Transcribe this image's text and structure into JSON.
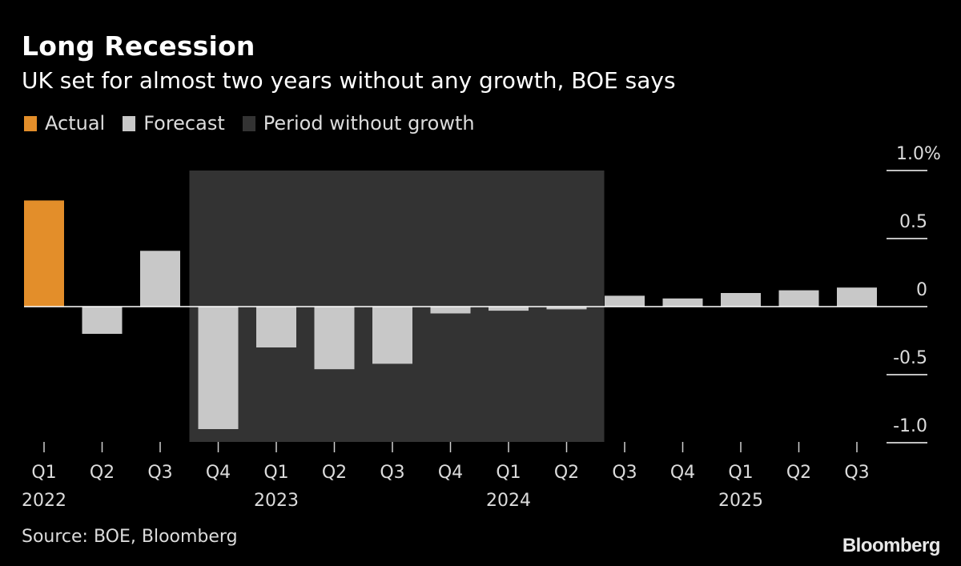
{
  "header": {
    "title": "Long Recession",
    "subtitle": "UK set for almost two years without any growth, BOE says"
  },
  "legend": [
    {
      "label": "Actual",
      "color": "#e38e2a"
    },
    {
      "label": "Forecast",
      "color": "#c8c8c8"
    },
    {
      "label": "Period without growth",
      "color": "#333333"
    }
  ],
  "footer": {
    "source": "Source: BOE, Bloomberg",
    "brand": "Bloomberg"
  },
  "chart_data": {
    "type": "bar",
    "title": "Long Recession",
    "subtitle": "UK set for almost two years without any growth, BOE says",
    "unit": "%",
    "categories": [
      "Q1",
      "Q2",
      "Q3",
      "Q4",
      "Q1",
      "Q2",
      "Q3",
      "Q4",
      "Q1",
      "Q2",
      "Q3",
      "Q4",
      "Q1",
      "Q2",
      "Q3"
    ],
    "years": [
      {
        "label": "2022",
        "at_index": 0
      },
      {
        "label": "2023",
        "at_index": 4
      },
      {
        "label": "2024",
        "at_index": 8
      },
      {
        "label": "2025",
        "at_index": 12
      }
    ],
    "values": [
      0.78,
      -0.2,
      0.41,
      -0.9,
      -0.3,
      -0.46,
      -0.42,
      -0.05,
      -0.03,
      -0.02,
      0.08,
      0.06,
      0.1,
      0.12,
      0.14
    ],
    "kinds": [
      "actual",
      "forecast",
      "forecast",
      "forecast",
      "forecast",
      "forecast",
      "forecast",
      "forecast",
      "forecast",
      "forecast",
      "forecast",
      "forecast",
      "forecast",
      "forecast",
      "forecast"
    ],
    "shaded_period": {
      "label": "Period without growth",
      "from_index": 3,
      "to_index": 9
    },
    "ylim": [
      -1.0,
      1.0
    ],
    "yticks": [
      {
        "value": 1.0,
        "label": "1.0%"
      },
      {
        "value": 0.5,
        "label": "0.5"
      },
      {
        "value": 0,
        "label": "0"
      },
      {
        "value": -0.5,
        "label": "-0.5"
      },
      {
        "value": -1.0,
        "label": "-1.0"
      }
    ],
    "colors": {
      "actual": "#e38e2a",
      "forecast": "#c8c8c8",
      "shade": "#333333",
      "axis": "#ffffff"
    }
  }
}
